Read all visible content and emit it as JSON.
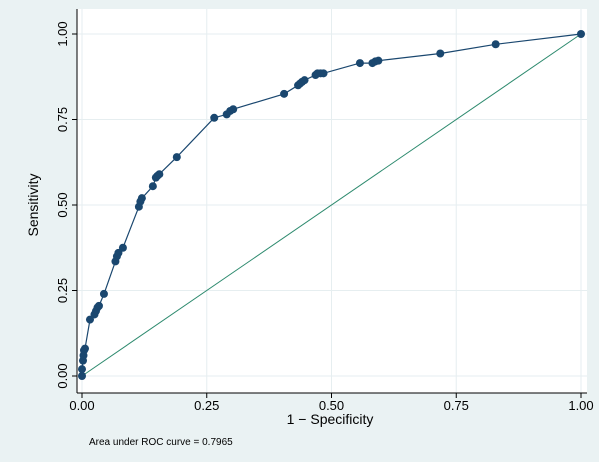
{
  "chart_data": {
    "type": "line",
    "title": "",
    "xlabel": "1 − Specificity",
    "ylabel": "Sensitivity",
    "xlim": [
      0,
      1
    ],
    "ylim": [
      0,
      1
    ],
    "xticks": [
      "0.00",
      "0.25",
      "0.50",
      "0.75",
      "1.00"
    ],
    "yticks": [
      "0.00",
      "0.25",
      "0.50",
      "0.75",
      "1.00"
    ],
    "xtick_values": [
      0,
      0.25,
      0.5,
      0.75,
      1
    ],
    "ytick_values": [
      0,
      0.25,
      0.5,
      0.75,
      1
    ],
    "grid": true,
    "legend": "none",
    "note": "Area under ROC curve = 0.7965",
    "series": [
      {
        "type": "line+markers",
        "color": "#1a476f",
        "points": [
          [
            0,
            0
          ],
          [
            0,
            0.02
          ],
          [
            0.002,
            0.045
          ],
          [
            0.003,
            0.06
          ],
          [
            0.004,
            0.075
          ],
          [
            0.006,
            0.08
          ],
          [
            0.016,
            0.165
          ],
          [
            0.025,
            0.18
          ],
          [
            0.028,
            0.19
          ],
          [
            0.031,
            0.2
          ],
          [
            0.034,
            0.205
          ],
          [
            0.044,
            0.24
          ],
          [
            0.067,
            0.335
          ],
          [
            0.07,
            0.35
          ],
          [
            0.073,
            0.36
          ],
          [
            0.082,
            0.375
          ],
          [
            0.114,
            0.495
          ],
          [
            0.117,
            0.51
          ],
          [
            0.12,
            0.52
          ],
          [
            0.142,
            0.555
          ],
          [
            0.148,
            0.58
          ],
          [
            0.151,
            0.585
          ],
          [
            0.155,
            0.59
          ],
          [
            0.19,
            0.64
          ],
          [
            0.265,
            0.755
          ],
          [
            0.29,
            0.765
          ],
          [
            0.297,
            0.775
          ],
          [
            0.303,
            0.78
          ],
          [
            0.405,
            0.825
          ],
          [
            0.433,
            0.85
          ],
          [
            0.437,
            0.855
          ],
          [
            0.441,
            0.86
          ],
          [
            0.446,
            0.865
          ],
          [
            0.468,
            0.88
          ],
          [
            0.472,
            0.885
          ],
          [
            0.478,
            0.885
          ],
          [
            0.484,
            0.885
          ],
          [
            0.557,
            0.915
          ],
          [
            0.582,
            0.915
          ],
          [
            0.588,
            0.92
          ],
          [
            0.594,
            0.922
          ],
          [
            0.718,
            0.943
          ],
          [
            0.829,
            0.97
          ],
          [
            1,
            1
          ]
        ]
      },
      {
        "type": "reference-line",
        "color": "#2d8a6e",
        "points": [
          [
            0,
            0
          ],
          [
            1,
            1
          ]
        ]
      }
    ]
  }
}
